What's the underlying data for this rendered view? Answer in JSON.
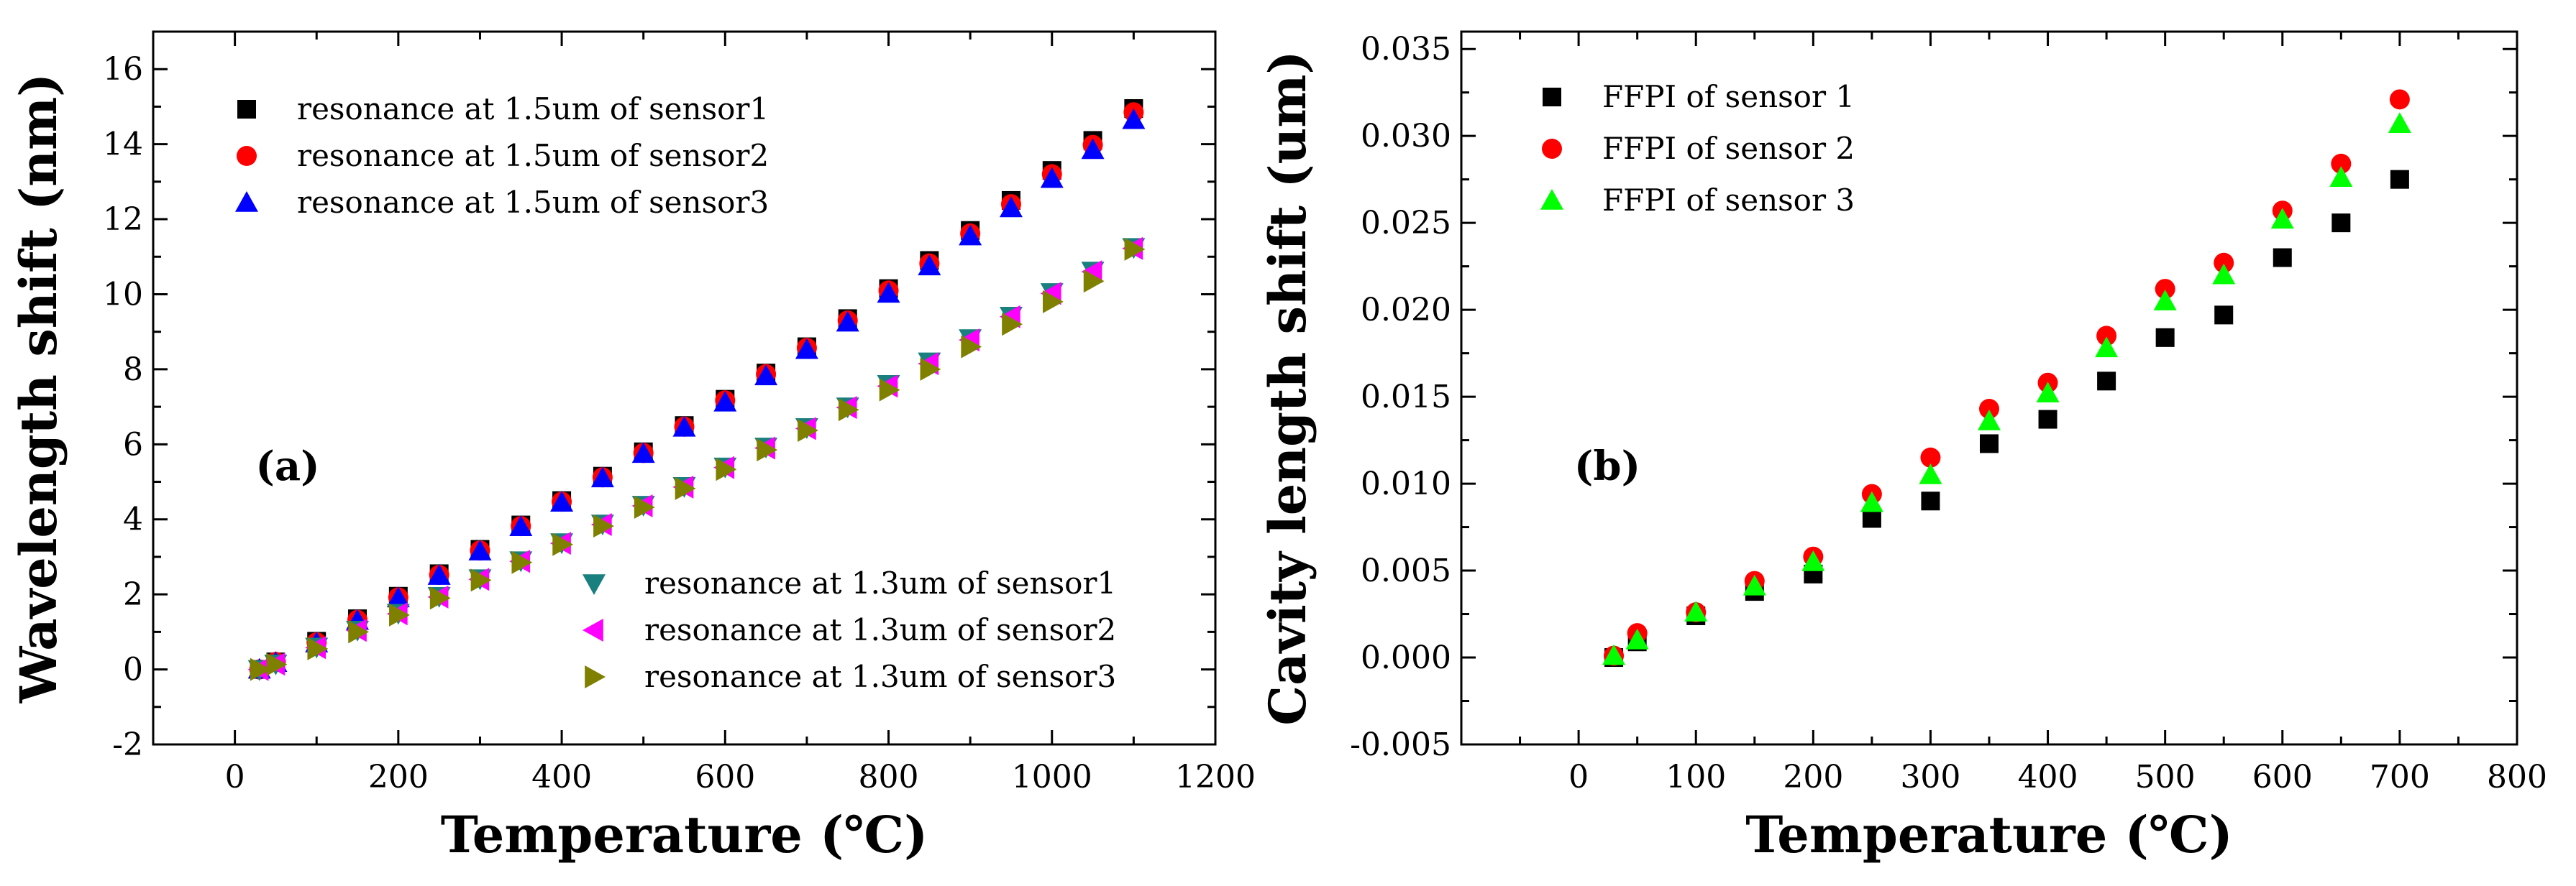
{
  "chart_data": [
    {
      "type": "scatter",
      "panel_label": "(a)",
      "xlabel": "Temperature (℃)",
      "ylabel": "Wavelength shift (nm)",
      "xlim": [
        -100,
        1200
      ],
      "ylim": [
        -2,
        17
      ],
      "xticks": [
        0,
        200,
        400,
        600,
        800,
        1000,
        1200
      ],
      "yticks": [
        -2,
        0,
        2,
        4,
        6,
        8,
        10,
        12,
        14,
        16
      ],
      "grid": false,
      "series": [
        {
          "name": "resonance at 1.5um of sensor1",
          "marker": "square",
          "color": "#000000",
          "x": [
            30,
            50,
            100,
            150,
            200,
            250,
            300,
            350,
            400,
            450,
            500,
            550,
            600,
            650,
            700,
            750,
            800,
            850,
            900,
            950,
            1000,
            1050,
            1100
          ],
          "y": [
            0,
            0.2,
            0.75,
            1.35,
            1.95,
            2.55,
            3.2,
            3.85,
            4.5,
            5.15,
            5.8,
            6.5,
            7.2,
            7.9,
            8.6,
            9.35,
            10.15,
            10.9,
            11.7,
            12.5,
            13.3,
            14.1,
            14.95
          ]
        },
        {
          "name": "resonance at 1.5um of sensor2",
          "marker": "circle",
          "color": "#ff0000",
          "x": [
            30,
            50,
            100,
            150,
            200,
            250,
            300,
            350,
            400,
            450,
            500,
            550,
            600,
            650,
            700,
            750,
            800,
            850,
            900,
            950,
            1000,
            1050,
            1100
          ],
          "y": [
            0,
            0.2,
            0.72,
            1.32,
            1.92,
            2.52,
            3.17,
            3.82,
            4.47,
            5.12,
            5.77,
            6.47,
            7.17,
            7.87,
            8.57,
            9.3,
            10.1,
            10.82,
            11.62,
            12.4,
            13.2,
            13.98,
            14.85
          ]
        },
        {
          "name": "resonance at 1.5um of sensor3",
          "marker": "triangle-up",
          "color": "#0000ff",
          "x": [
            30,
            50,
            100,
            150,
            200,
            250,
            300,
            350,
            400,
            450,
            500,
            550,
            600,
            650,
            700,
            750,
            800,
            850,
            900,
            950,
            1000,
            1050,
            1100
          ],
          "y": [
            0,
            0.18,
            0.7,
            1.3,
            1.9,
            2.5,
            3.15,
            3.8,
            4.45,
            5.1,
            5.75,
            6.45,
            7.12,
            7.82,
            8.52,
            9.25,
            10.02,
            10.75,
            11.55,
            12.3,
            13.08,
            13.85,
            14.65
          ]
        },
        {
          "name": "resonance at 1.3um of sensor1",
          "marker": "triangle-down",
          "color": "#1a7f7f",
          "x": [
            30,
            50,
            100,
            150,
            200,
            250,
            300,
            350,
            400,
            450,
            500,
            550,
            600,
            650,
            700,
            750,
            800,
            850,
            900,
            950,
            1000,
            1050,
            1100
          ],
          "y": [
            0,
            0.15,
            0.6,
            1.05,
            1.5,
            1.95,
            2.42,
            2.9,
            3.38,
            3.88,
            4.38,
            4.88,
            5.4,
            5.93,
            6.45,
            7.0,
            7.6,
            8.2,
            8.82,
            9.42,
            10.05,
            10.62,
            11.25
          ]
        },
        {
          "name": "resonance at 1.3um of sensor2",
          "marker": "triangle-left",
          "color": "#ff00ff",
          "x": [
            30,
            50,
            100,
            150,
            200,
            250,
            300,
            350,
            400,
            450,
            500,
            550,
            600,
            650,
            700,
            750,
            800,
            850,
            900,
            950,
            1000,
            1050,
            1100
          ],
          "y": [
            0,
            0.14,
            0.58,
            1.04,
            1.48,
            1.93,
            2.4,
            2.88,
            3.36,
            3.86,
            4.36,
            4.86,
            5.38,
            5.9,
            6.42,
            6.98,
            7.55,
            8.15,
            8.78,
            9.4,
            10.02,
            10.6,
            11.22
          ]
        },
        {
          "name": "resonance at 1.3um of sensor3",
          "marker": "triangle-right",
          "color": "#808000",
          "x": [
            30,
            50,
            100,
            150,
            200,
            250,
            300,
            350,
            400,
            450,
            500,
            550,
            600,
            650,
            700,
            750,
            800,
            850,
            900,
            950,
            1000,
            1050,
            1100
          ],
          "y": [
            0,
            0.13,
            0.55,
            1.0,
            1.45,
            1.9,
            2.38,
            2.85,
            3.33,
            3.82,
            4.32,
            4.82,
            5.33,
            5.85,
            6.37,
            6.92,
            7.45,
            8.0,
            8.6,
            9.2,
            9.8,
            10.35,
            11.2
          ]
        }
      ]
    },
    {
      "type": "scatter",
      "panel_label": "(b)",
      "xlabel": "Temperature (℃)",
      "ylabel": "Cavity length shift (um)",
      "xlim": [
        -100,
        800
      ],
      "ylim": [
        -0.005,
        0.036
      ],
      "xticks": [
        0,
        100,
        200,
        300,
        400,
        500,
        600,
        700,
        800
      ],
      "yticks": [
        -0.005,
        0.0,
        0.005,
        0.01,
        0.015,
        0.02,
        0.025,
        0.03,
        0.035
      ],
      "ytick_labels": [
        "-0.005",
        "0.000",
        "0.005",
        "0.010",
        "0.015",
        "0.020",
        "0.025",
        "0.030",
        "0.035"
      ],
      "grid": false,
      "series": [
        {
          "name": "FFPI of sensor 1",
          "marker": "square",
          "color": "#000000",
          "x": [
            30,
            50,
            100,
            150,
            200,
            250,
            300,
            350,
            400,
            450,
            500,
            550,
            600,
            650,
            700
          ],
          "y": [
            0.0,
            0.0009,
            0.0024,
            0.0038,
            0.0048,
            0.008,
            0.009,
            0.0123,
            0.0137,
            0.0159,
            0.0184,
            0.0197,
            0.023,
            0.025,
            0.0275
          ]
        },
        {
          "name": "FFPI of sensor 2",
          "marker": "circle",
          "color": "#ff0000",
          "x": [
            30,
            50,
            100,
            150,
            200,
            250,
            300,
            350,
            400,
            450,
            500,
            550,
            600,
            650,
            700
          ],
          "y": [
            0.0001,
            0.0014,
            0.0026,
            0.0044,
            0.0058,
            0.0094,
            0.0115,
            0.0143,
            0.0158,
            0.0185,
            0.0212,
            0.0227,
            0.0257,
            0.0284,
            0.0321
          ]
        },
        {
          "name": "FFPI of sensor 3",
          "marker": "triangle-up",
          "color": "#00ff00",
          "x": [
            30,
            50,
            100,
            150,
            200,
            250,
            300,
            350,
            400,
            450,
            500,
            550,
            600,
            650,
            700
          ],
          "y": [
            0.0001,
            0.001,
            0.0026,
            0.0041,
            0.0055,
            0.0089,
            0.0105,
            0.0136,
            0.0152,
            0.0178,
            0.0205,
            0.022,
            0.0252,
            0.0276,
            0.0307
          ]
        }
      ]
    }
  ]
}
